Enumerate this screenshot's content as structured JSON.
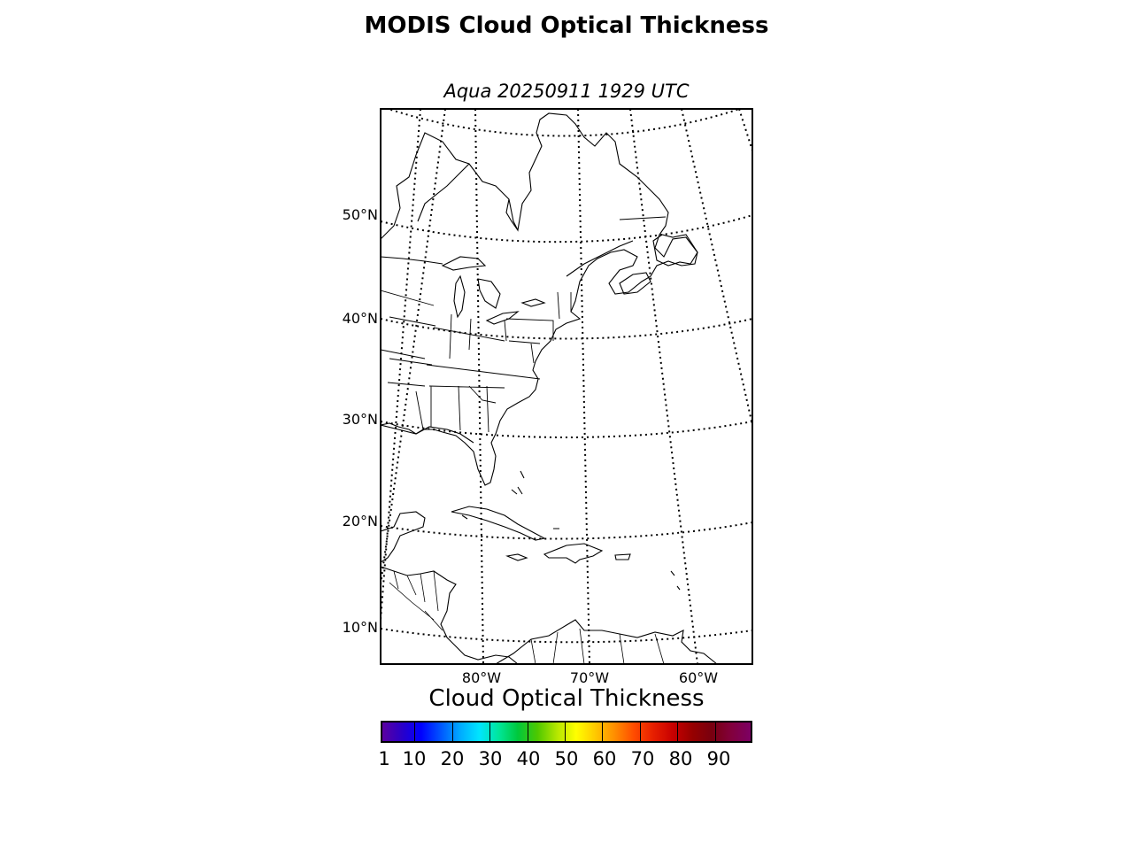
{
  "figure": {
    "title": "MODIS Cloud Optical Thickness",
    "subtitle": "Aqua 20250911 1929 UTC"
  },
  "map": {
    "projection": "conic",
    "lat_labels": [
      "50°N",
      "40°N",
      "30°N",
      "20°N",
      "10°N"
    ],
    "lon_labels": [
      "80°W",
      "70°W",
      "60°W"
    ],
    "gridline_style": "dotted",
    "features": [
      "coastlines",
      "country-borders",
      "state-borders",
      "lakes",
      "islands"
    ]
  },
  "colorbar": {
    "title": "Cloud Optical Thickness",
    "tick_labels": [
      "1",
      "10",
      "20",
      "30",
      "40",
      "50",
      "60",
      "70",
      "80",
      "90"
    ],
    "colors": [
      "#5b00a0",
      "#2a00c8",
      "#0000ff",
      "#0055ff",
      "#00aaff",
      "#00e5ff",
      "#00e69a",
      "#00c83c",
      "#4ec800",
      "#b4e600",
      "#ffff00",
      "#ffc800",
      "#ff8c00",
      "#ff4b00",
      "#e61e00",
      "#c80000",
      "#960000",
      "#78000f",
      "#82003c",
      "#7d0064"
    ]
  }
}
